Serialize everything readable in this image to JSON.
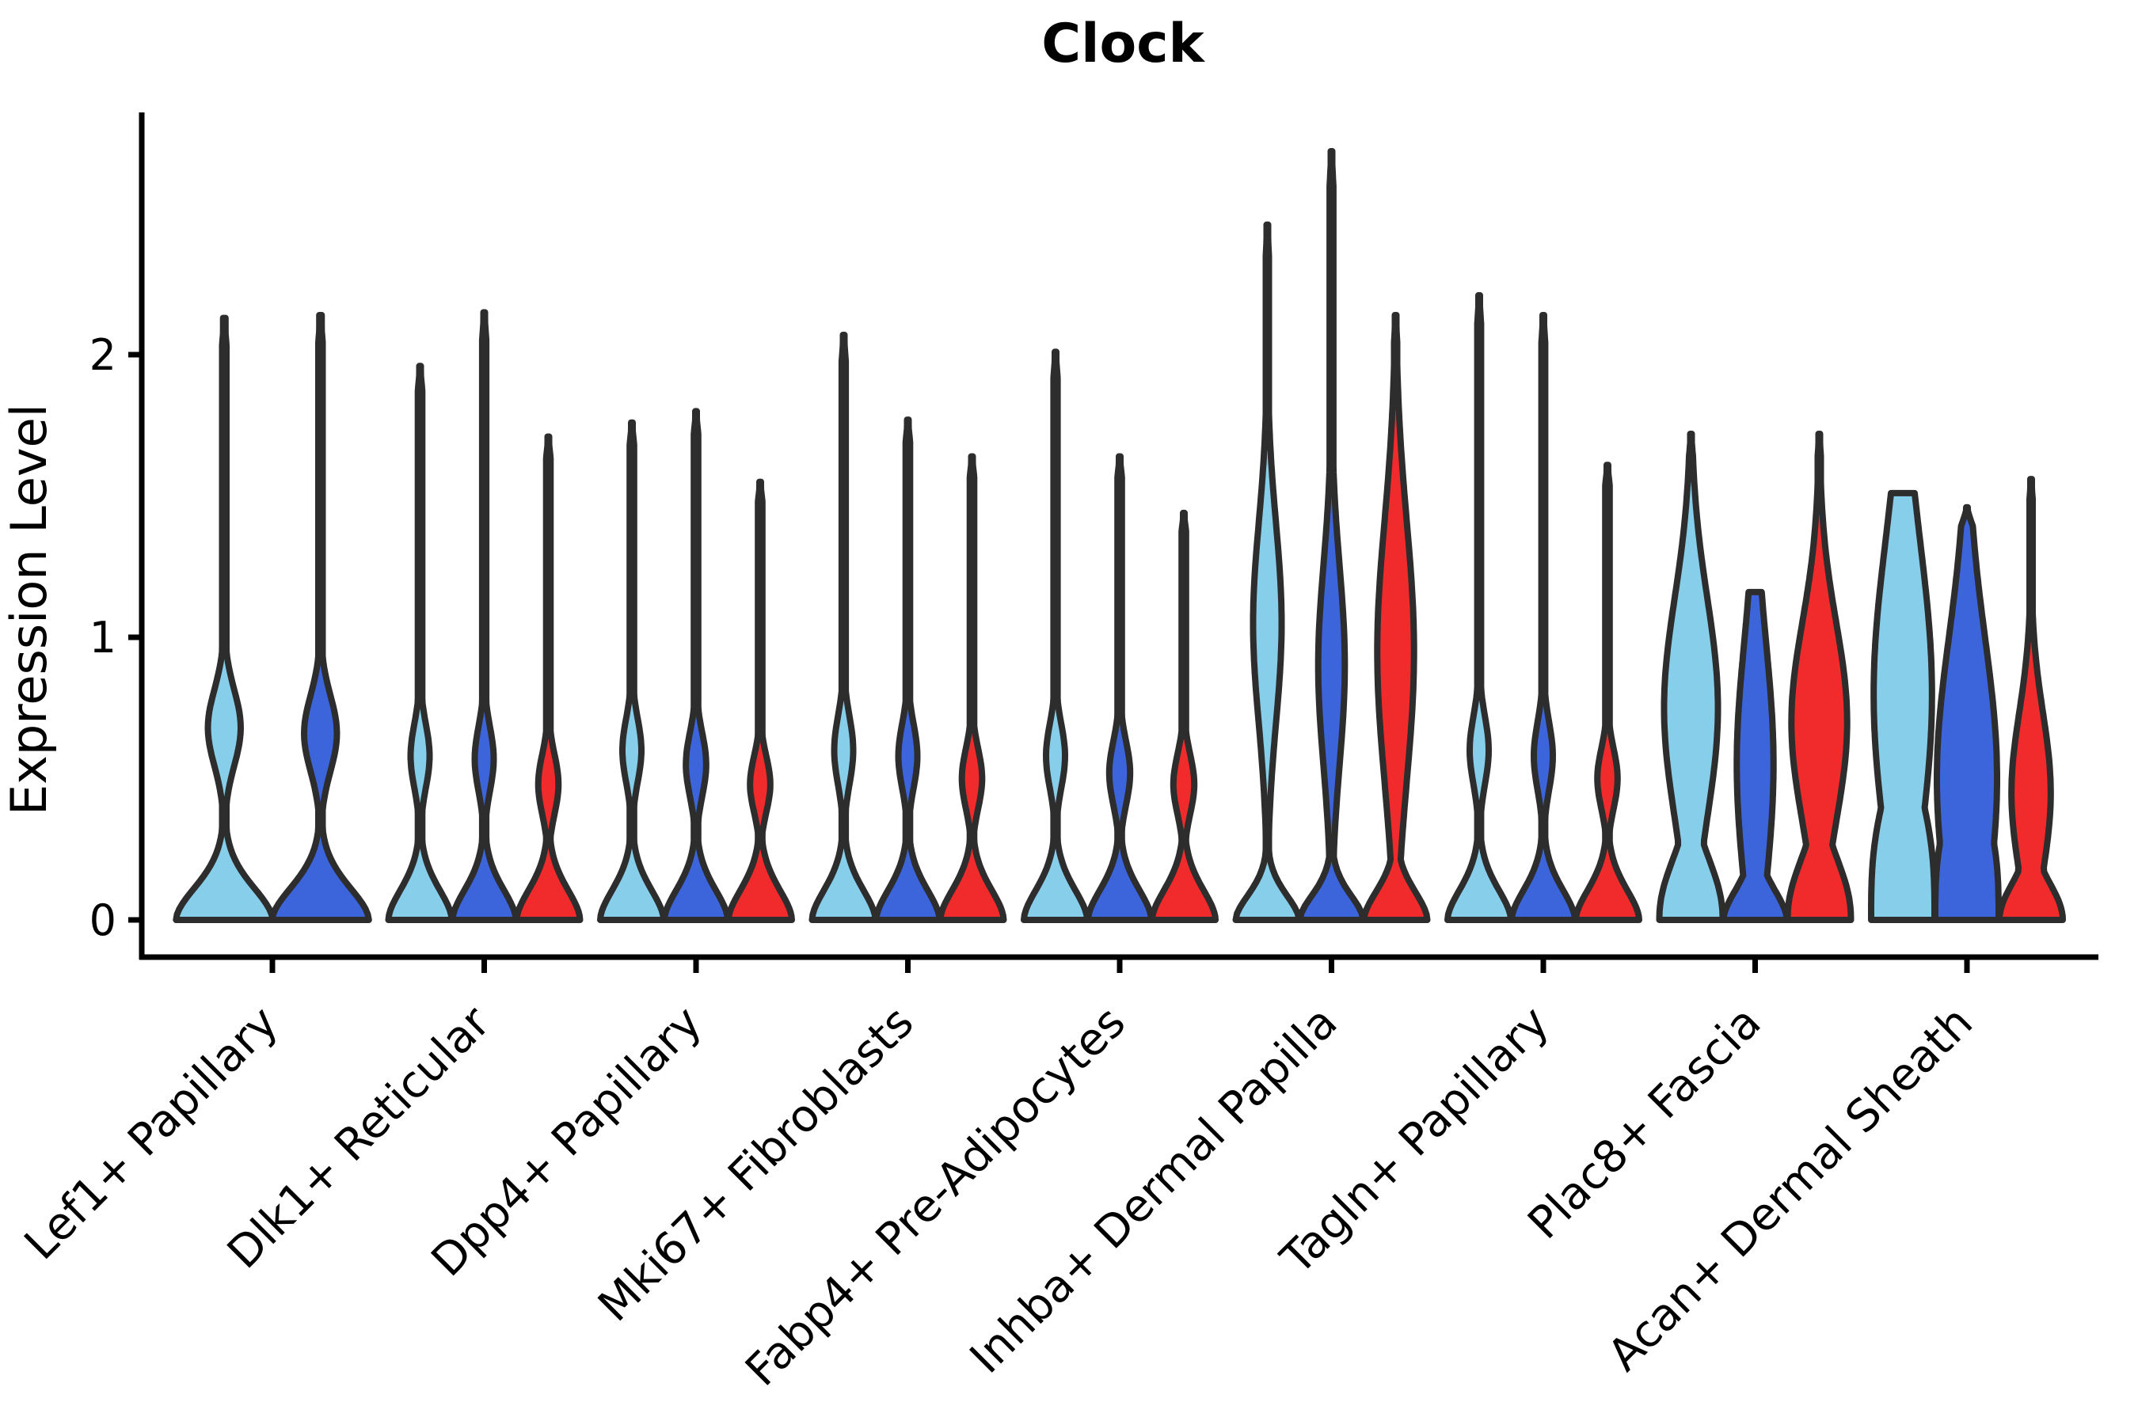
{
  "title": "Clock",
  "y_axis": {
    "label": "Expression Level",
    "tick_labels": [
      "0",
      "1",
      "2"
    ],
    "tick_values": [
      0,
      1,
      2
    ]
  },
  "chart_data": {
    "type": "violin",
    "title": "Clock",
    "xlabel": "",
    "ylabel": "Expression Level",
    "ylim": [
      0,
      2.85
    ],
    "y_ticks": [
      0,
      1,
      2
    ],
    "grid": "off",
    "legend": "none",
    "colors": {
      "light": "#87CEEB",
      "dark": "#3C64DB",
      "red": "#F12B2B",
      "outline": "#2D2D2D",
      "axis": "#000000"
    },
    "categories": [
      "Lef1+ Papillary",
      "Dlk1+ Reticular",
      "Dpp4+ Papillary",
      "Mki67+ Fibroblasts",
      "Fabp4+ Pre-Adipocytes",
      "Inhba+ Dermal Papilla",
      "Tagln+ Papillary",
      "Plac8+ Fascia",
      "Acan+ Dermal Sheath"
    ],
    "groups": [
      {
        "label": "Lef1+ Papillary",
        "violins": [
          {
            "c": "light",
            "x": 283.25,
            "hw": 61,
            "max": 2.13,
            "fs": 0.17,
            "fp": 1.8,
            "a": 0.34,
            "m": 0.68,
            "s": 0.19,
            "t": 0.045,
            "tip": "point"
          },
          {
            "c": "dark",
            "x": 404.75,
            "hw": 61,
            "max": 2.14,
            "fs": 0.17,
            "fp": 1.8,
            "a": 0.34,
            "m": 0.66,
            "s": 0.19,
            "t": 0.045,
            "tip": "point"
          }
        ]
      },
      {
        "label": "Dlk1+ Reticular",
        "violins": [
          {
            "c": "light",
            "x": 530.5,
            "hw": 40,
            "max": 1.96,
            "fs": 0.16,
            "fp": 1.8,
            "a": 0.3,
            "m": 0.58,
            "s": 0.16,
            "t": 0.07,
            "tip": "point"
          },
          {
            "c": "dark",
            "x": 611.5,
            "hw": 40,
            "max": 2.15,
            "fs": 0.16,
            "fp": 1.8,
            "a": 0.3,
            "m": 0.57,
            "s": 0.16,
            "t": 0.065,
            "tip": "point"
          },
          {
            "c": "red",
            "x": 692.5,
            "hw": 40,
            "max": 1.71,
            "fs": 0.16,
            "fp": 1.8,
            "a": 0.32,
            "m": 0.48,
            "s": 0.15,
            "t": 0.07,
            "tip": "point"
          }
        ]
      },
      {
        "label": "Dpp4+ Papillary",
        "violins": [
          {
            "c": "light",
            "x": 798,
            "hw": 40,
            "max": 1.76,
            "fs": 0.16,
            "fp": 1.8,
            "a": 0.3,
            "m": 0.6,
            "s": 0.16,
            "t": 0.07,
            "tip": "point"
          },
          {
            "c": "dark",
            "x": 879,
            "hw": 40,
            "max": 1.8,
            "fs": 0.16,
            "fp": 1.8,
            "a": 0.32,
            "m": 0.55,
            "s": 0.16,
            "t": 0.07,
            "tip": "point"
          },
          {
            "c": "red",
            "x": 960,
            "hw": 40,
            "max": 1.55,
            "fs": 0.16,
            "fp": 1.8,
            "a": 0.32,
            "m": 0.48,
            "s": 0.14,
            "t": 0.07,
            "tip": "point"
          }
        ]
      },
      {
        "label": "Mki67+ Fibroblasts",
        "violins": [
          {
            "c": "light",
            "x": 1065.5,
            "hw": 40,
            "max": 2.07,
            "fs": 0.16,
            "fp": 1.8,
            "a": 0.3,
            "m": 0.6,
            "s": 0.17,
            "t": 0.065,
            "tip": "point"
          },
          {
            "c": "dark",
            "x": 1146.5,
            "hw": 40,
            "max": 1.77,
            "fs": 0.16,
            "fp": 1.8,
            "a": 0.3,
            "m": 0.58,
            "s": 0.16,
            "t": 0.07,
            "tip": "point"
          },
          {
            "c": "red",
            "x": 1227.5,
            "hw": 40,
            "max": 1.64,
            "fs": 0.16,
            "fp": 1.8,
            "a": 0.32,
            "m": 0.5,
            "s": 0.15,
            "t": 0.07,
            "tip": "point"
          }
        ]
      },
      {
        "label": "Fabp4+ Pre-Adipocytes",
        "violins": [
          {
            "c": "light",
            "x": 1333,
            "hw": 40,
            "max": 2.01,
            "fs": 0.16,
            "fp": 1.8,
            "a": 0.3,
            "m": 0.58,
            "s": 0.16,
            "t": 0.065,
            "tip": "point"
          },
          {
            "c": "dark",
            "x": 1414,
            "hw": 40,
            "max": 1.64,
            "fs": 0.16,
            "fp": 1.8,
            "a": 0.33,
            "m": 0.52,
            "s": 0.16,
            "t": 0.07,
            "tip": "point"
          },
          {
            "c": "red",
            "x": 1495,
            "hw": 40,
            "max": 1.44,
            "fs": 0.16,
            "fp": 1.8,
            "a": 0.33,
            "m": 0.48,
            "s": 0.15,
            "t": 0.07,
            "tip": "point"
          }
        ]
      },
      {
        "label": "Inhba+ Dermal Papilla",
        "violins": [
          {
            "c": "light",
            "x": 1600.5,
            "hw": 40,
            "max": 2.46,
            "fs": 0.13,
            "fp": 1.8,
            "a": 0.45,
            "m": 1.05,
            "s": 0.5,
            "t": 0.05,
            "tip": "point"
          },
          {
            "c": "dark",
            "x": 1681.5,
            "hw": 40,
            "max": 2.72,
            "fs": 0.13,
            "fp": 1.8,
            "a": 0.42,
            "m": 0.9,
            "s": 0.5,
            "t": 0.06,
            "tip": "point"
          },
          {
            "c": "red",
            "x": 1762.5,
            "hw": 40,
            "max": 2.14,
            "fs": 0.15,
            "fp": 1.8,
            "a": 0.58,
            "m": 0.95,
            "s": 0.65,
            "t": 0.05,
            "tip": "point"
          }
        ]
      },
      {
        "label": "Tagln+ Papillary",
        "violins": [
          {
            "c": "light",
            "x": 1868,
            "hw": 40,
            "max": 2.21,
            "fs": 0.16,
            "fp": 1.8,
            "a": 0.3,
            "m": 0.6,
            "s": 0.17,
            "t": 0.06,
            "tip": "point"
          },
          {
            "c": "dark",
            "x": 1949,
            "hw": 40,
            "max": 2.14,
            "fs": 0.16,
            "fp": 1.8,
            "a": 0.3,
            "m": 0.58,
            "s": 0.17,
            "t": 0.06,
            "tip": "point"
          },
          {
            "c": "red",
            "x": 2030,
            "hw": 40,
            "max": 1.61,
            "fs": 0.16,
            "fp": 1.8,
            "a": 0.32,
            "m": 0.5,
            "s": 0.15,
            "t": 0.07,
            "tip": "point"
          }
        ]
      },
      {
        "label": "Plac8+ Fascia",
        "violins": [
          {
            "c": "light",
            "x": 2135.5,
            "hw": 40,
            "max": 1.72,
            "fs": 0.28,
            "fp": 2.2,
            "a": 0.85,
            "m": 0.75,
            "s": 0.55,
            "t": 0.06,
            "tip": "point"
          },
          {
            "c": "dark",
            "x": 2216.5,
            "hw": 40,
            "max": 1.16,
            "fs": 0.16,
            "fp": 1.8,
            "a": 0.58,
            "m": 0.55,
            "s": 0.6,
            "t": 0.1,
            "tip": "flat"
          },
          {
            "c": "red",
            "x": 2297.5,
            "hw": 40,
            "max": 1.72,
            "fs": 0.28,
            "fp": 2.2,
            "a": 0.88,
            "m": 0.7,
            "s": 0.5,
            "t": 0.05,
            "tip": "point"
          }
        ]
      },
      {
        "label": "Acan+ Dermal Sheath",
        "violins": [
          {
            "c": "light",
            "x": 2403,
            "hw": 40,
            "max": 1.51,
            "fs": 0.55,
            "fp": 3.0,
            "a": 0.92,
            "m": 0.8,
            "s": 0.75,
            "t": 0.06,
            "tip": "flat"
          },
          {
            "c": "dark",
            "x": 2484,
            "hw": 40,
            "max": 1.46,
            "fs": 0.5,
            "fp": 3.0,
            "a": 0.95,
            "m": 0.5,
            "s": 0.7,
            "t": 0.05,
            "tip": "point"
          },
          {
            "c": "red",
            "x": 2565,
            "hw": 40,
            "max": 1.56,
            "fs": 0.18,
            "fp": 2.0,
            "a": 0.62,
            "m": 0.45,
            "s": 0.4,
            "t": 0.05,
            "tip": "point"
          }
        ]
      }
    ]
  }
}
